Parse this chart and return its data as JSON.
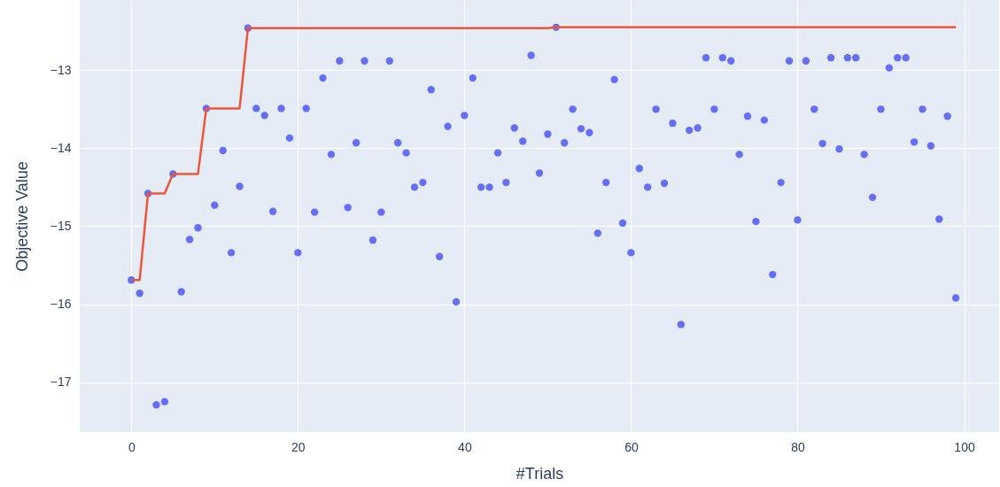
{
  "chart_data": {
    "type": "scatter",
    "xlabel": "#Trials",
    "ylabel": "Objective Value",
    "x": [
      0,
      1,
      2,
      3,
      4,
      5,
      6,
      7,
      8,
      9,
      10,
      11,
      12,
      13,
      14,
      15,
      16,
      17,
      18,
      19,
      20,
      21,
      22,
      23,
      24,
      25,
      26,
      27,
      28,
      29,
      30,
      31,
      32,
      33,
      34,
      35,
      36,
      37,
      38,
      39,
      40,
      41,
      42,
      43,
      44,
      45,
      46,
      47,
      48,
      49,
      50,
      51,
      52,
      53,
      54,
      55,
      56,
      57,
      58,
      59,
      60,
      61,
      62,
      63,
      64,
      65,
      66,
      67,
      68,
      69,
      70,
      71,
      72,
      73,
      74,
      75,
      76,
      77,
      78,
      79,
      80,
      81,
      82,
      83,
      84,
      85,
      86,
      87,
      88,
      89,
      90,
      91,
      92,
      93,
      94,
      95,
      96,
      97,
      98,
      99
    ],
    "series": [
      {
        "type": "scatter",
        "color": "#636efa",
        "marker": "circle",
        "values": [
          -15.69,
          -15.86,
          -14.58,
          -17.29,
          -17.25,
          -14.33,
          -15.84,
          -15.17,
          -15.02,
          -13.49,
          -14.73,
          -14.03,
          -15.34,
          -14.49,
          -12.46,
          -13.49,
          -13.58,
          -14.81,
          -13.49,
          -13.87,
          -15.34,
          -13.49,
          -14.82,
          -13.1,
          -14.08,
          -12.88,
          -14.76,
          -13.93,
          -12.88,
          -15.18,
          -14.82,
          -12.88,
          -13.93,
          -14.06,
          -14.5,
          -14.44,
          -13.25,
          -15.39,
          -13.72,
          -15.97,
          -13.58,
          -13.1,
          -14.5,
          -14.5,
          -14.06,
          -14.44,
          -13.74,
          -13.91,
          -12.81,
          -14.32,
          -13.82,
          -12.45,
          -13.93,
          -13.5,
          -13.75,
          -13.8,
          -15.09,
          -14.44,
          -13.12,
          -14.96,
          -15.34,
          -14.26,
          -14.5,
          -13.5,
          -14.45,
          -13.68,
          -16.26,
          -13.77,
          -13.74,
          -12.84,
          -13.5,
          -12.84,
          -12.88,
          -14.08,
          -13.59,
          -14.94,
          -13.64,
          -15.62,
          -14.44,
          -12.88,
          -14.92,
          -12.88,
          -13.5,
          -13.94,
          -12.84,
          -14.01,
          -12.84,
          -12.84,
          -14.08,
          -14.63,
          -13.5,
          -12.97,
          -12.84,
          -12.84,
          -13.92,
          -13.5,
          -13.97,
          -14.91,
          -13.59,
          -15.92
        ]
      },
      {
        "type": "line",
        "color": "#ef553b",
        "marker": "none",
        "line_style": "solid",
        "values": [
          -15.69,
          -15.69,
          -14.58,
          -14.58,
          -14.58,
          -14.33,
          -14.33,
          -14.33,
          -14.33,
          -13.49,
          -13.49,
          -13.49,
          -13.49,
          -13.49,
          -12.46,
          -12.46,
          -12.46,
          -12.46,
          -12.46,
          -12.46,
          -12.46,
          -12.46,
          -12.46,
          -12.46,
          -12.46,
          -12.46,
          -12.46,
          -12.46,
          -12.46,
          -12.46,
          -12.46,
          -12.46,
          -12.46,
          -12.46,
          -12.46,
          -12.46,
          -12.46,
          -12.46,
          -12.46,
          -12.46,
          -12.46,
          -12.46,
          -12.46,
          -12.46,
          -12.46,
          -12.46,
          -12.46,
          -12.46,
          -12.46,
          -12.46,
          -12.46,
          -12.45,
          -12.45,
          -12.45,
          -12.45,
          -12.45,
          -12.45,
          -12.45,
          -12.45,
          -12.45,
          -12.45,
          -12.45,
          -12.45,
          -12.45,
          -12.45,
          -12.45,
          -12.45,
          -12.45,
          -12.45,
          -12.45,
          -12.45,
          -12.45,
          -12.45,
          -12.45,
          -12.45,
          -12.45,
          -12.45,
          -12.45,
          -12.45,
          -12.45,
          -12.45,
          -12.45,
          -12.45,
          -12.45,
          -12.45,
          -12.45,
          -12.45,
          -12.45,
          -12.45,
          -12.45,
          -12.45,
          -12.45,
          -12.45,
          -12.45,
          -12.45,
          -12.45,
          -12.45,
          -12.45,
          -12.45,
          -12.45
        ]
      }
    ],
    "xlim": [
      -6.2,
      104.2
    ],
    "xticks": [
      0,
      20,
      40,
      60,
      80,
      100
    ],
    "ylim": [
      -17.64,
      -12.1
    ],
    "yticks": [
      -17,
      -16,
      -15,
      -14,
      -13
    ],
    "grid": true
  }
}
